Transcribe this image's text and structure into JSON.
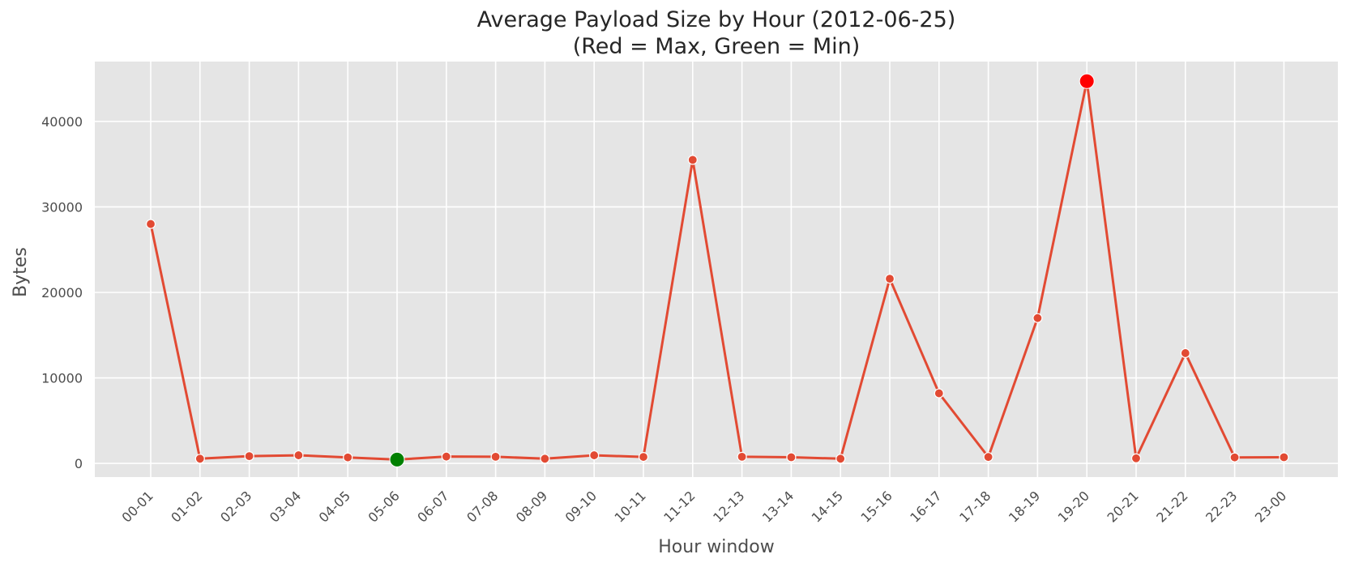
{
  "chart_data": {
    "type": "line",
    "title": "Average Payload Size by Hour  (2012-06-25)",
    "subtitle": "(Red = Max, Green = Min)",
    "xlabel": "Hour window",
    "ylabel": "Bytes",
    "categories": [
      "00-01",
      "01-02",
      "02-03",
      "03-04",
      "04-05",
      "05-06",
      "06-07",
      "07-08",
      "08-09",
      "09-10",
      "10-11",
      "11-12",
      "12-13",
      "13-14",
      "14-15",
      "15-16",
      "16-17",
      "17-18",
      "18-19",
      "19-20",
      "20-21",
      "21-22",
      "22-23",
      "23-00"
    ],
    "series": [
      {
        "name": "Average payload",
        "values": [
          28000,
          550,
          850,
          950,
          700,
          450,
          800,
          780,
          550,
          950,
          760,
          35500,
          780,
          720,
          550,
          21600,
          8200,
          750,
          17000,
          44700,
          600,
          12900,
          700,
          720
        ]
      }
    ],
    "ylim": [
      -1600,
      47000
    ],
    "yticks": [
      0,
      10000,
      20000,
      30000,
      40000
    ],
    "grid": true,
    "highlights": {
      "max_index": 19,
      "min_index": 5
    },
    "colors": {
      "line": "#e24a33",
      "max_marker": "#ff0000",
      "min_marker": "#008000",
      "plot_background": "#e5e5e5",
      "grid": "#ffffff"
    }
  }
}
